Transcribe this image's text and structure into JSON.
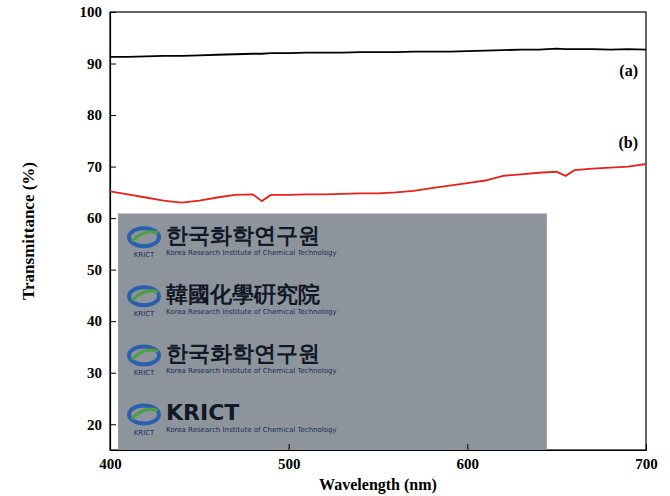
{
  "chart_data": {
    "type": "line",
    "x_label": "Wavelength (nm)",
    "y_label": "Transmittance (%)",
    "x": [
      400,
      410,
      420,
      430,
      440,
      450,
      460,
      470,
      480,
      485,
      490,
      500,
      510,
      520,
      530,
      540,
      550,
      560,
      570,
      580,
      590,
      600,
      610,
      620,
      630,
      640,
      650,
      655,
      660,
      670,
      680,
      690,
      700
    ],
    "series": [
      {
        "name": "(a)",
        "color": "#000000",
        "values": [
          91.3,
          91.3,
          91.4,
          91.5,
          91.5,
          91.6,
          91.7,
          91.8,
          91.9,
          91.9,
          92.0,
          92.0,
          92.1,
          92.1,
          92.1,
          92.2,
          92.2,
          92.2,
          92.3,
          92.3,
          92.3,
          92.4,
          92.5,
          92.6,
          92.7,
          92.7,
          92.9,
          92.8,
          92.8,
          92.8,
          92.7,
          92.8,
          92.7
        ]
      },
      {
        "name": "(b)",
        "color": "#e8211b",
        "values": [
          65.2,
          64.6,
          64.0,
          63.4,
          63.0,
          63.4,
          64.0,
          64.5,
          64.6,
          63.3,
          64.5,
          64.5,
          64.6,
          64.6,
          64.7,
          64.8,
          64.8,
          65.0,
          65.3,
          65.8,
          66.3,
          66.8,
          67.3,
          68.2,
          68.5,
          68.8,
          69.0,
          68.2,
          69.3,
          69.6,
          69.8,
          70.0,
          70.5
        ]
      }
    ],
    "xlim": [
      400,
      700
    ],
    "xticks": [
      400,
      500,
      600,
      700
    ],
    "ylim": [
      15,
      100
    ],
    "yticks": [
      20,
      30,
      40,
      50,
      60,
      70,
      80,
      90,
      100
    ],
    "grid": false,
    "inset": {
      "logo": "KRICT",
      "rows": [
        {
          "text": "한국화학연구원",
          "sub": "Korea Research Institute of Chemical Technology"
        },
        {
          "text": "韓國化學硏究院",
          "sub": "Korea Research Institute of Chemical Technology"
        },
        {
          "text": "한국화학연구원",
          "sub": "Korea Research Institute of Chemical Technology"
        },
        {
          "text": "KRICT",
          "sub": "Korea Research Institute of Chemical Technology"
        }
      ]
    }
  }
}
